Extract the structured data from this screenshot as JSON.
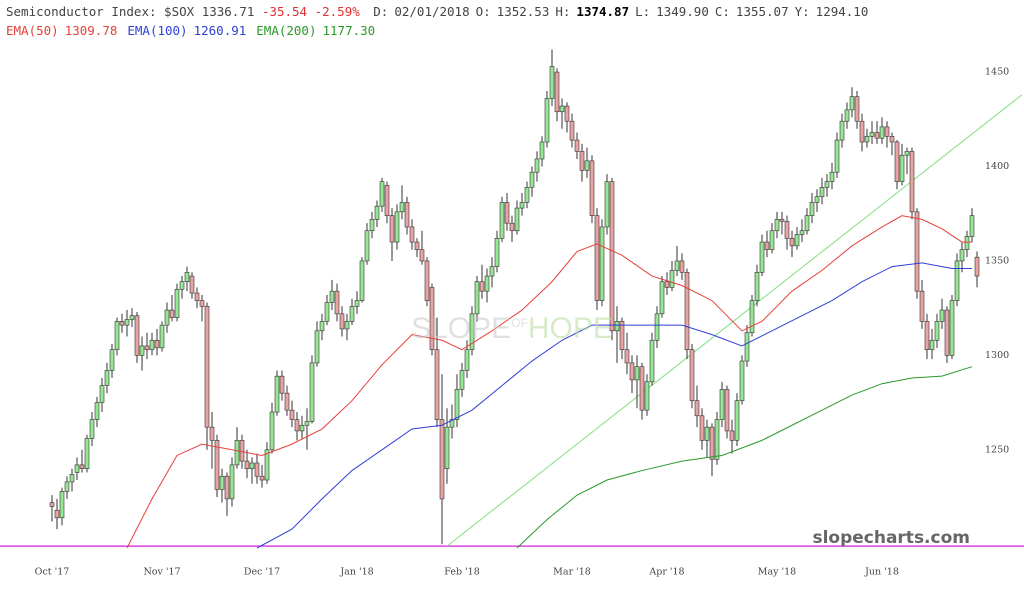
{
  "chart_data": {
    "type": "candlestick",
    "header": {
      "title": "Semiconductor Index: $SOX",
      "last": "1336.71",
      "change": "-35.54",
      "change_pct": "-2.59%",
      "fields": [
        {
          "label": "D:",
          "value": "02/01/2018"
        },
        {
          "label": "O:",
          "value": "1352.53"
        },
        {
          "label": "H:",
          "value": "1374.87"
        },
        {
          "label": "L:",
          "value": "1349.90"
        },
        {
          "label": "C:",
          "value": "1355.07"
        },
        {
          "label": "Y:",
          "value": "1294.10"
        }
      ]
    },
    "up_color": "#96e696",
    "down_color": "#e8a3a3",
    "outline_color": "#333333",
    "xlim": [
      -10.4,
      184.6
    ],
    "ylim": [
      1198,
      1467
    ],
    "yticks": [
      1250,
      1300,
      1350,
      1400,
      1450
    ],
    "xticks": [
      {
        "value": 0,
        "label": "Oct '17"
      },
      {
        "value": 22,
        "label": "Nov '17"
      },
      {
        "value": 42,
        "label": "Dec '17"
      },
      {
        "value": 61,
        "label": "Jan '18"
      },
      {
        "value": 82,
        "label": "Feb '18"
      },
      {
        "value": 104,
        "label": "Mar '18"
      },
      {
        "value": 123,
        "label": "Apr '18"
      },
      {
        "value": 145,
        "label": "May '18"
      },
      {
        "value": 166,
        "label": "Jun '18"
      }
    ],
    "candles": [
      [
        1222,
        1226,
        1212,
        1220
      ],
      [
        1218,
        1224,
        1208,
        1214
      ],
      [
        1214,
        1230,
        1210,
        1228
      ],
      [
        1228,
        1236,
        1224,
        1233
      ],
      [
        1233,
        1240,
        1228,
        1237
      ],
      [
        1238,
        1246,
        1234,
        1242
      ],
      [
        1242,
        1250,
        1238,
        1240
      ],
      [
        1240,
        1258,
        1238,
        1256
      ],
      [
        1256,
        1270,
        1252,
        1266
      ],
      [
        1266,
        1278,
        1262,
        1275
      ],
      [
        1275,
        1288,
        1270,
        1284
      ],
      [
        1284,
        1296,
        1280,
        1292
      ],
      [
        1292,
        1306,
        1288,
        1303
      ],
      [
        1303,
        1320,
        1300,
        1318
      ],
      [
        1318,
        1322,
        1312,
        1316
      ],
      [
        1316,
        1324,
        1310,
        1319
      ],
      [
        1319,
        1325,
        1315,
        1321
      ],
      [
        1321,
        1323,
        1296,
        1300
      ],
      [
        1300,
        1310,
        1292,
        1305
      ],
      [
        1305,
        1312,
        1298,
        1303
      ],
      [
        1303,
        1312,
        1300,
        1308
      ],
      [
        1308,
        1314,
        1300,
        1304
      ],
      [
        1304,
        1318,
        1302,
        1316
      ],
      [
        1316,
        1328,
        1312,
        1324
      ],
      [
        1324,
        1332,
        1318,
        1320
      ],
      [
        1320,
        1338,
        1318,
        1335
      ],
      [
        1335,
        1342,
        1330,
        1339
      ],
      [
        1339,
        1347,
        1334,
        1344
      ],
      [
        1342,
        1344,
        1330,
        1333
      ],
      [
        1333,
        1336,
        1325,
        1329
      ],
      [
        1329,
        1332,
        1318,
        1326
      ],
      [
        1326,
        1328,
        1250,
        1262
      ],
      [
        1262,
        1270,
        1240,
        1255
      ],
      [
        1255,
        1258,
        1225,
        1229
      ],
      [
        1229,
        1240,
        1222,
        1236
      ],
      [
        1236,
        1238,
        1215,
        1224
      ],
      [
        1224,
        1246,
        1220,
        1242
      ],
      [
        1242,
        1262,
        1240,
        1255
      ],
      [
        1255,
        1258,
        1240,
        1244
      ],
      [
        1244,
        1250,
        1235,
        1240
      ],
      [
        1240,
        1246,
        1232,
        1243
      ],
      [
        1243,
        1248,
        1232,
        1236
      ],
      [
        1236,
        1242,
        1230,
        1234
      ],
      [
        1234,
        1254,
        1232,
        1250
      ],
      [
        1250,
        1275,
        1248,
        1270
      ],
      [
        1270,
        1292,
        1268,
        1289
      ],
      [
        1289,
        1292,
        1276,
        1280
      ],
      [
        1280,
        1284,
        1268,
        1271
      ],
      [
        1271,
        1276,
        1262,
        1266
      ],
      [
        1266,
        1270,
        1255,
        1260
      ],
      [
        1260,
        1268,
        1256,
        1263
      ],
      [
        1263,
        1272,
        1250,
        1265
      ],
      [
        1265,
        1300,
        1264,
        1296
      ],
      [
        1296,
        1318,
        1294,
        1313
      ],
      [
        1313,
        1322,
        1308,
        1318
      ],
      [
        1318,
        1332,
        1316,
        1328
      ],
      [
        1328,
        1340,
        1324,
        1334
      ],
      [
        1334,
        1338,
        1318,
        1322
      ],
      [
        1322,
        1326,
        1310,
        1314
      ],
      [
        1314,
        1322,
        1308,
        1318
      ],
      [
        1318,
        1330,
        1316,
        1326
      ],
      [
        1326,
        1334,
        1322,
        1329
      ],
      [
        1329,
        1352,
        1328,
        1350
      ],
      [
        1350,
        1370,
        1348,
        1366
      ],
      [
        1366,
        1376,
        1362,
        1372
      ],
      [
        1372,
        1382,
        1368,
        1379
      ],
      [
        1379,
        1394,
        1376,
        1392
      ],
      [
        1390,
        1392,
        1370,
        1374
      ],
      [
        1374,
        1378,
        1350,
        1360
      ],
      [
        1360,
        1380,
        1356,
        1376
      ],
      [
        1376,
        1390,
        1372,
        1381
      ],
      [
        1381,
        1384,
        1364,
        1368
      ],
      [
        1368,
        1372,
        1356,
        1360
      ],
      [
        1360,
        1362,
        1352,
        1356
      ],
      [
        1356,
        1366,
        1348,
        1350
      ],
      [
        1350,
        1352,
        1326,
        1329
      ],
      [
        1336,
        1338,
        1300,
        1303
      ],
      [
        1303,
        1320,
        1262,
        1266
      ],
      [
        1266,
        1290,
        1200,
        1224
      ],
      [
        1240,
        1272,
        1232,
        1262
      ],
      [
        1262,
        1274,
        1256,
        1266
      ],
      [
        1266,
        1290,
        1262,
        1282
      ],
      [
        1282,
        1296,
        1278,
        1292
      ],
      [
        1292,
        1308,
        1288,
        1303
      ],
      [
        1303,
        1326,
        1300,
        1322
      ],
      [
        1322,
        1342,
        1318,
        1339
      ],
      [
        1339,
        1348,
        1330,
        1334
      ],
      [
        1334,
        1346,
        1328,
        1342
      ],
      [
        1342,
        1352,
        1336,
        1347
      ],
      [
        1347,
        1366,
        1344,
        1362
      ],
      [
        1362,
        1384,
        1360,
        1381
      ],
      [
        1381,
        1386,
        1366,
        1370
      ],
      [
        1370,
        1374,
        1360,
        1366
      ],
      [
        1366,
        1382,
        1364,
        1378
      ],
      [
        1378,
        1386,
        1374,
        1381
      ],
      [
        1381,
        1392,
        1378,
        1389
      ],
      [
        1389,
        1400,
        1384,
        1397
      ],
      [
        1397,
        1408,
        1392,
        1404
      ],
      [
        1404,
        1416,
        1400,
        1413
      ],
      [
        1413,
        1440,
        1410,
        1436
      ],
      [
        1436,
        1462,
        1432,
        1453
      ],
      [
        1450,
        1452,
        1424,
        1429
      ],
      [
        1429,
        1436,
        1420,
        1432
      ],
      [
        1432,
        1434,
        1418,
        1424
      ],
      [
        1424,
        1428,
        1410,
        1414
      ],
      [
        1414,
        1418,
        1404,
        1408
      ],
      [
        1408,
        1412,
        1392,
        1398
      ],
      [
        1398,
        1410,
        1394,
        1403
      ],
      [
        1403,
        1406,
        1370,
        1374
      ],
      [
        1374,
        1378,
        1324,
        1329
      ],
      [
        1329,
        1372,
        1326,
        1368
      ],
      [
        1368,
        1396,
        1364,
        1392
      ],
      [
        1392,
        1394,
        1308,
        1313
      ],
      [
        1313,
        1326,
        1296,
        1318
      ],
      [
        1318,
        1320,
        1298,
        1303
      ],
      [
        1303,
        1312,
        1290,
        1296
      ],
      [
        1296,
        1300,
        1280,
        1287
      ],
      [
        1287,
        1300,
        1272,
        1294
      ],
      [
        1294,
        1296,
        1266,
        1271
      ],
      [
        1271,
        1290,
        1268,
        1286
      ],
      [
        1286,
        1312,
        1284,
        1308
      ],
      [
        1308,
        1326,
        1304,
        1322
      ],
      [
        1322,
        1342,
        1320,
        1339
      ],
      [
        1339,
        1344,
        1332,
        1336
      ],
      [
        1336,
        1350,
        1334,
        1345
      ],
      [
        1345,
        1358,
        1342,
        1350
      ],
      [
        1350,
        1354,
        1340,
        1344
      ],
      [
        1344,
        1346,
        1298,
        1303
      ],
      [
        1303,
        1306,
        1272,
        1276
      ],
      [
        1276,
        1284,
        1262,
        1268
      ],
      [
        1268,
        1272,
        1250,
        1255
      ],
      [
        1255,
        1266,
        1246,
        1262
      ],
      [
        1262,
        1264,
        1236,
        1245
      ],
      [
        1245,
        1270,
        1242,
        1266
      ],
      [
        1266,
        1286,
        1262,
        1282
      ],
      [
        1282,
        1284,
        1256,
        1260
      ],
      [
        1260,
        1266,
        1248,
        1255
      ],
      [
        1255,
        1280,
        1252,
        1276
      ],
      [
        1276,
        1300,
        1274,
        1297
      ],
      [
        1297,
        1316,
        1294,
        1312
      ],
      [
        1312,
        1332,
        1310,
        1329
      ],
      [
        1329,
        1348,
        1326,
        1344
      ],
      [
        1344,
        1364,
        1342,
        1360
      ],
      [
        1360,
        1366,
        1352,
        1356
      ],
      [
        1356,
        1370,
        1354,
        1366
      ],
      [
        1366,
        1376,
        1362,
        1372
      ],
      [
        1372,
        1376,
        1364,
        1371
      ],
      [
        1371,
        1374,
        1356,
        1362
      ],
      [
        1362,
        1366,
        1352,
        1358
      ],
      [
        1358,
        1368,
        1356,
        1364
      ],
      [
        1364,
        1372,
        1360,
        1366
      ],
      [
        1366,
        1378,
        1364,
        1374
      ],
      [
        1374,
        1386,
        1370,
        1381
      ],
      [
        1381,
        1388,
        1376,
        1384
      ],
      [
        1384,
        1394,
        1380,
        1389
      ],
      [
        1389,
        1396,
        1384,
        1392
      ],
      [
        1392,
        1402,
        1388,
        1397
      ],
      [
        1397,
        1418,
        1394,
        1414
      ],
      [
        1414,
        1428,
        1410,
        1424
      ],
      [
        1424,
        1434,
        1420,
        1430
      ],
      [
        1430,
        1442,
        1426,
        1437
      ],
      [
        1437,
        1440,
        1420,
        1424
      ],
      [
        1424,
        1428,
        1408,
        1413
      ],
      [
        1413,
        1420,
        1410,
        1416
      ],
      [
        1416,
        1424,
        1412,
        1418
      ],
      [
        1418,
        1424,
        1412,
        1415
      ],
      [
        1415,
        1426,
        1412,
        1421
      ],
      [
        1421,
        1424,
        1410,
        1416
      ],
      [
        1416,
        1418,
        1406,
        1413
      ],
      [
        1413,
        1414,
        1388,
        1392
      ],
      [
        1392,
        1412,
        1390,
        1406
      ],
      [
        1406,
        1410,
        1396,
        1408
      ],
      [
        1408,
        1410,
        1372,
        1376
      ],
      [
        1376,
        1378,
        1330,
        1334
      ],
      [
        1334,
        1340,
        1314,
        1318
      ],
      [
        1318,
        1322,
        1298,
        1303
      ],
      [
        1303,
        1314,
        1298,
        1308
      ],
      [
        1308,
        1322,
        1304,
        1318
      ],
      [
        1318,
        1330,
        1314,
        1324
      ],
      [
        1324,
        1326,
        1296,
        1300
      ],
      [
        1300,
        1332,
        1298,
        1329
      ],
      [
        1329,
        1354,
        1326,
        1350
      ],
      [
        1350,
        1360,
        1344,
        1356
      ],
      [
        1356,
        1366,
        1352,
        1363
      ],
      [
        1363,
        1378,
        1360,
        1374
      ],
      [
        1352,
        1355,
        1336,
        1342
      ]
    ],
    "series": [
      {
        "name": "EMA(50)",
        "legend_value": "1309.78",
        "color": "#e8403a",
        "x": [
          15,
          20,
          25,
          30,
          36,
          42,
          48,
          54,
          60,
          66,
          72,
          78,
          82,
          88,
          94,
          100,
          105,
          109,
          114,
          120,
          126,
          132,
          138,
          142,
          148,
          154,
          160,
          166,
          170,
          174,
          178,
          182,
          184
        ],
        "values": [
          1198,
          1224,
          1247,
          1253,
          1250,
          1247,
          1253,
          1261,
          1276,
          1295,
          1311,
          1308,
          1303,
          1313,
          1324,
          1339,
          1355,
          1359,
          1353,
          1342,
          1337,
          1329,
          1313,
          1318,
          1334,
          1345,
          1358,
          1368,
          1374,
          1372,
          1367,
          1360,
          1360
        ]
      },
      {
        "name": "EMA(100)",
        "legend_value": "1260.91",
        "color": "#2f3fd8",
        "x": [
          41,
          48,
          54,
          60,
          66,
          72,
          78,
          84,
          90,
          96,
          102,
          108,
          114,
          120,
          126,
          132,
          138,
          144,
          150,
          156,
          162,
          168,
          174,
          180,
          184
        ],
        "values": [
          1198,
          1208,
          1224,
          1239,
          1250,
          1261,
          1263,
          1271,
          1284,
          1297,
          1308,
          1316,
          1316,
          1316,
          1316,
          1311,
          1305,
          1313,
          1321,
          1329,
          1339,
          1347,
          1349,
          1346,
          1346
        ]
      },
      {
        "name": "EMA(200)",
        "legend_value": "1177.30",
        "color": "#2a9a2a",
        "x": [
          93,
          99,
          105,
          111,
          118,
          126,
          134,
          142,
          148,
          154,
          160,
          166,
          172,
          178,
          184
        ],
        "values": [
          1198,
          1213,
          1226,
          1234,
          1239,
          1244,
          1247,
          1255,
          1263,
          1271,
          1279,
          1285,
          1288,
          1289,
          1294
        ]
      }
    ],
    "trend_line": {
      "color": "#7fe07f",
      "x": [
        79,
        194
      ],
      "values": [
        1199,
        1438
      ]
    },
    "horizontal_line": {
      "color": "#e040e0",
      "value": 1199
    },
    "annotations": {
      "watermark": "slopecharts.com",
      "logo_left": "SLOPE",
      "logo_mid": "OF",
      "logo_right": "HOPE"
    }
  }
}
